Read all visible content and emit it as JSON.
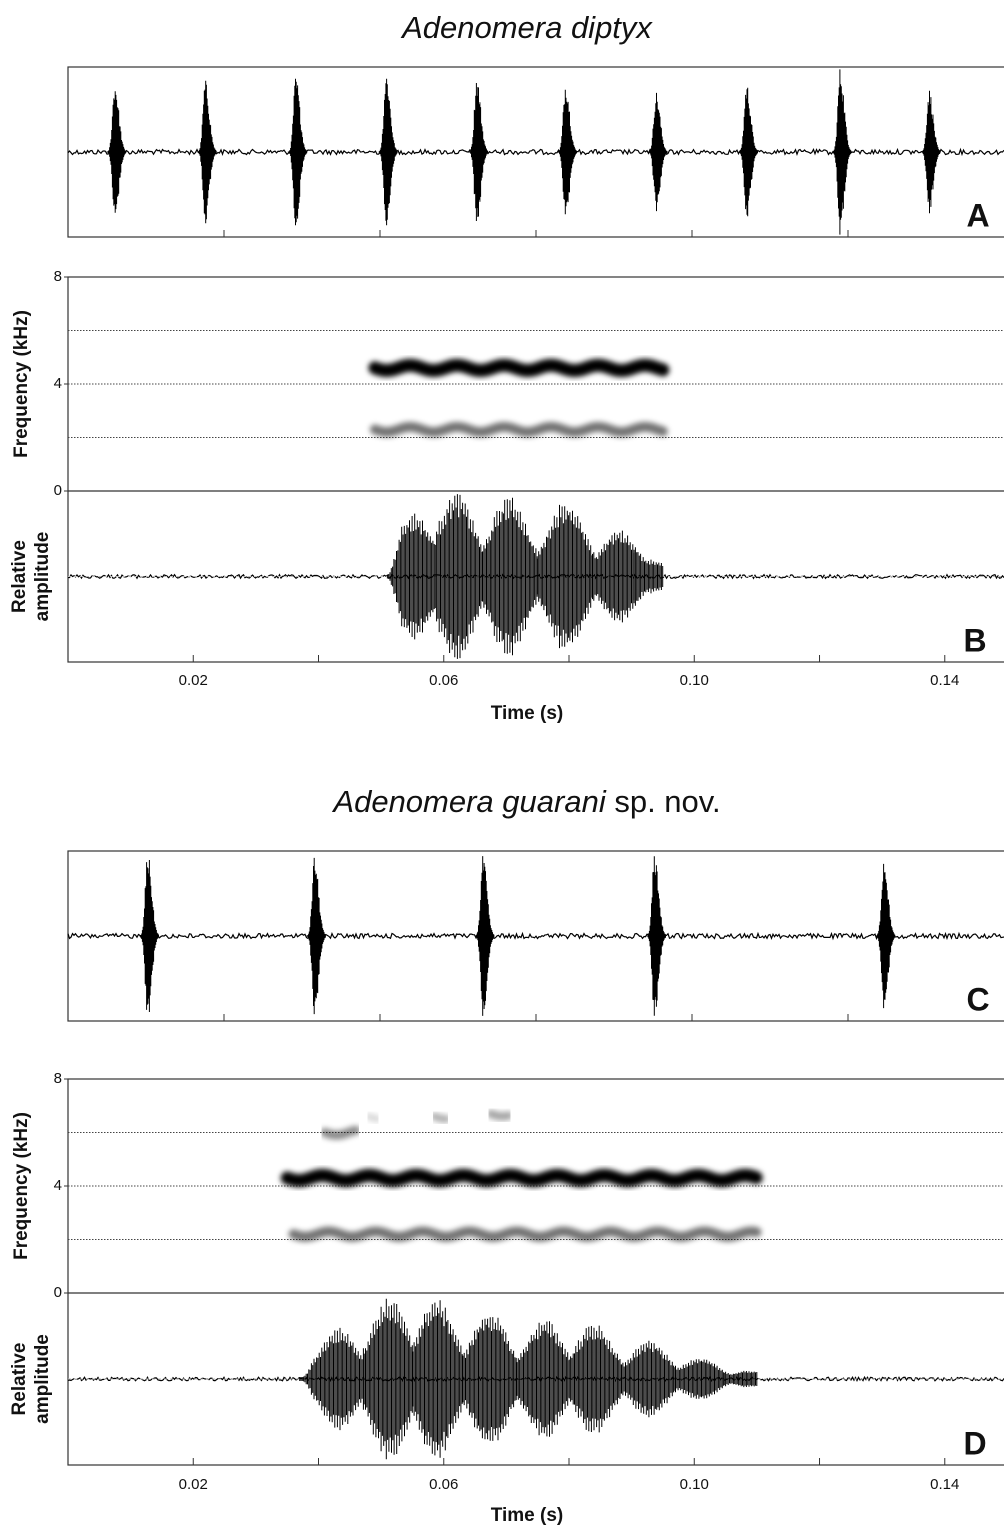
{
  "chart_data": [
    {
      "type": "waveform",
      "title": "Adenomera diptyx",
      "panel": "A",
      "color": "#000000",
      "xlim": [
        0,
        6
      ],
      "xticks_minor": [
        1,
        2,
        3,
        4,
        5
      ],
      "ylim": [
        -1,
        1
      ],
      "pulses": {
        "x": [
          0.3,
          0.88,
          1.46,
          2.04,
          2.62,
          3.19,
          3.77,
          4.35,
          4.95,
          5.52
        ],
        "amplitude": [
          0.83,
          0.85,
          0.9,
          0.95,
          0.9,
          0.85,
          0.72,
          0.82,
          1.0,
          0.75
        ]
      }
    },
    {
      "type": "spectrogram",
      "panel": "B",
      "color": "#000000",
      "ylabel": "Frequency (kHz)",
      "amplitude_label": [
        "Relative",
        "amplitude"
      ],
      "xlabel": "Time (s)",
      "xlim": [
        0,
        0.15
      ],
      "xticks": [
        0.02,
        0.06,
        {
          "value": 0.1,
          "label": "0.10"
        },
        0.14
      ],
      "xticks_minor": [
        0.04,
        0.08,
        0.12
      ],
      "ylim": [
        0,
        8
      ],
      "yticks": [
        0,
        4,
        8
      ],
      "grid": [
        2,
        4,
        6
      ],
      "amp_ylim": [
        -1,
        1
      ],
      "bands": [
        {
          "freq": 4.6,
          "start": 0.049,
          "end": 0.095,
          "intensity": 1.0
        },
        {
          "freq": 2.3,
          "start": 0.049,
          "end": 0.095,
          "intensity": 0.55
        }
      ],
      "onset": 0.051,
      "offset": 0.095,
      "lobes": {
        "t": [
          0.0553,
          0.062,
          0.0704,
          0.0795,
          0.088,
          0.0928
        ],
        "amplitude": [
          0.75,
          1.0,
          0.95,
          0.9,
          0.55,
          0.2
        ]
      }
    },
    {
      "type": "waveform",
      "title": "Adenomera guarani",
      "title_note": "sp. nov.",
      "panel": "C",
      "color": "#000000",
      "xlim": [
        0,
        6
      ],
      "xticks_minor": [
        1,
        2,
        3,
        4,
        5
      ],
      "ylim": [
        -1,
        1
      ],
      "pulses": {
        "x": [
          0.51,
          1.58,
          2.66,
          3.76,
          5.23
        ],
        "amplitude": [
          1.0,
          0.95,
          0.95,
          1.0,
          0.95
        ]
      }
    },
    {
      "type": "spectrogram",
      "panel": "D",
      "color": "#000000",
      "ylabel": "Frequency (kHz)",
      "amplitude_label": [
        "Relative",
        "amplitude"
      ],
      "xlabel": "Time (s)",
      "xlim": [
        0,
        0.15
      ],
      "xticks": [
        0.02,
        0.06,
        {
          "value": 0.1,
          "label": "0.10"
        },
        0.14
      ],
      "xticks_minor": [
        0.04,
        0.08,
        0.12
      ],
      "ylim": [
        0,
        8
      ],
      "yticks": [
        0,
        4,
        8
      ],
      "grid": [
        2,
        4,
        6
      ],
      "amp_ylim": [
        -1,
        1
      ],
      "bands": [
        {
          "freq": 4.3,
          "start": 0.035,
          "end": 0.11,
          "intensity": 1.0
        },
        {
          "freq": 2.2,
          "start": 0.036,
          "end": 0.11,
          "intensity": 0.55
        },
        {
          "freq": 6.0,
          "start": 0.041,
          "end": 0.046,
          "intensity": 0.45
        },
        {
          "freq": 6.6,
          "start": 0.048,
          "end": 0.0495,
          "intensity": 0.15
        },
        {
          "freq": 6.6,
          "start": 0.0585,
          "end": 0.0605,
          "intensity": 0.3
        },
        {
          "freq": 6.7,
          "start": 0.0675,
          "end": 0.0705,
          "intensity": 0.35
        }
      ],
      "onset": 0.037,
      "offset": 0.11,
      "lobes": {
        "t": [
          0.0433,
          0.0513,
          0.0588,
          0.0673,
          0.0761,
          0.084,
          0.0928,
          0.1008,
          0.1088
        ],
        "amplitude": [
          0.6,
          0.95,
          0.95,
          0.8,
          0.7,
          0.65,
          0.45,
          0.25,
          0.1
        ]
      }
    }
  ]
}
